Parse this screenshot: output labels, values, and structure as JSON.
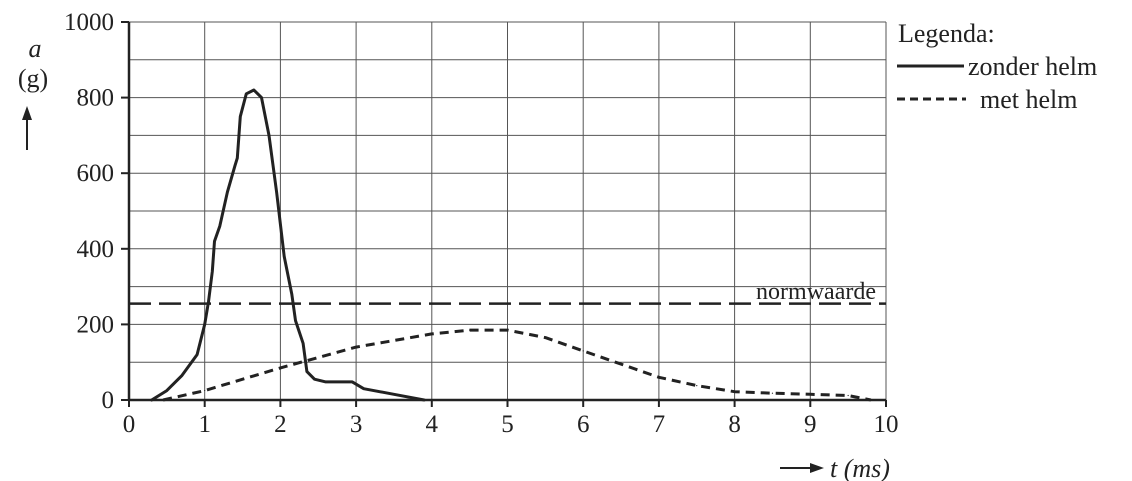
{
  "chart_data": {
    "type": "line",
    "xlabel": "t (ms)",
    "ylabel_var": "a",
    "ylabel_unit": "(g)",
    "xlim": [
      0,
      10
    ],
    "ylim": [
      0,
      1000
    ],
    "x_ticks": [
      0,
      1,
      2,
      3,
      4,
      5,
      6,
      7,
      8,
      9,
      10
    ],
    "y_ticks": [
      0,
      200,
      400,
      600,
      800,
      1000
    ],
    "grid": true,
    "legend": {
      "title": "Legenda:",
      "placement": "right"
    },
    "series": [
      {
        "name": "zonder helm",
        "style": "solid",
        "points": [
          [
            0.3,
            0
          ],
          [
            0.5,
            25
          ],
          [
            0.7,
            65
          ],
          [
            0.9,
            120
          ],
          [
            1.0,
            200
          ],
          [
            1.05,
            260
          ],
          [
            1.1,
            340
          ],
          [
            1.13,
            420
          ],
          [
            1.2,
            460
          ],
          [
            1.3,
            550
          ],
          [
            1.4,
            620
          ],
          [
            1.43,
            640
          ],
          [
            1.47,
            750
          ],
          [
            1.55,
            810
          ],
          [
            1.65,
            820
          ],
          [
            1.75,
            800
          ],
          [
            1.85,
            700
          ],
          [
            1.95,
            550
          ],
          [
            2.05,
            380
          ],
          [
            2.15,
            280
          ],
          [
            2.2,
            210
          ],
          [
            2.3,
            150
          ],
          [
            2.35,
            75
          ],
          [
            2.45,
            55
          ],
          [
            2.6,
            48
          ],
          [
            2.95,
            48
          ],
          [
            3.1,
            30
          ],
          [
            3.5,
            15
          ],
          [
            3.9,
            0
          ]
        ]
      },
      {
        "name": "met helm",
        "style": "dashed",
        "points": [
          [
            0.45,
            0
          ],
          [
            1,
            25
          ],
          [
            2,
            85
          ],
          [
            3,
            140
          ],
          [
            4,
            175
          ],
          [
            4.5,
            185
          ],
          [
            5,
            185
          ],
          [
            5.5,
            165
          ],
          [
            6,
            130
          ],
          [
            6.5,
            95
          ],
          [
            7,
            60
          ],
          [
            7.5,
            38
          ],
          [
            8,
            22
          ],
          [
            8.5,
            18
          ],
          [
            9,
            15
          ],
          [
            9.5,
            12
          ],
          [
            9.8,
            0
          ]
        ]
      }
    ],
    "reference_line": {
      "label": "normwaarde",
      "y": 255
    }
  }
}
